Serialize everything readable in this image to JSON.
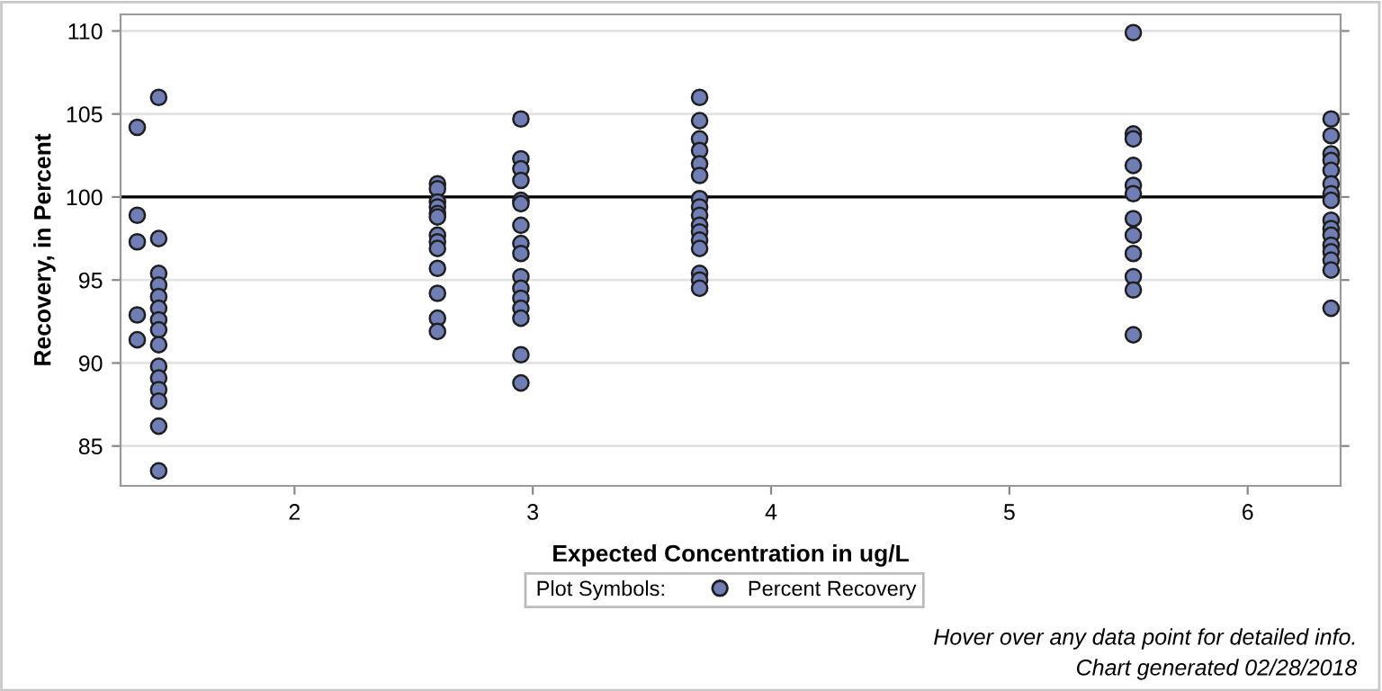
{
  "chart_data": {
    "type": "scatter",
    "xlabel": "Expected Concentration in ug/L",
    "ylabel": "Recovery, in Percent",
    "legend_title": "Plot Symbols:",
    "series": [
      {
        "name": "Percent Recovery",
        "color": "#6f7fb5",
        "x": [
          1.34,
          1.34,
          1.34,
          1.34,
          1.34,
          1.43,
          1.43,
          1.43,
          1.43,
          1.43,
          1.43,
          1.43,
          1.43,
          1.43,
          1.43,
          1.43,
          1.43,
          1.43,
          1.43,
          1.43,
          2.6,
          2.6,
          2.6,
          2.6,
          2.6,
          2.6,
          2.6,
          2.6,
          2.6,
          2.6,
          2.6,
          2.6,
          2.6,
          2.95,
          2.95,
          2.95,
          2.95,
          2.95,
          2.95,
          2.95,
          2.95,
          2.95,
          2.95,
          2.95,
          2.95,
          2.95,
          2.95,
          2.95,
          2.95,
          3.7,
          3.7,
          3.7,
          3.7,
          3.7,
          3.7,
          3.7,
          3.7,
          3.7,
          3.7,
          3.7,
          3.7,
          3.7,
          3.7,
          3.7,
          3.7,
          5.52,
          5.52,
          5.52,
          5.52,
          5.52,
          5.52,
          5.52,
          5.52,
          5.52,
          5.52,
          5.52,
          5.52,
          6.35,
          6.35,
          6.35,
          6.35,
          6.35,
          6.35,
          6.35,
          6.35,
          6.35,
          6.35,
          6.35,
          6.35,
          6.35,
          6.35,
          6.35,
          6.35
        ],
        "values": [
          104.2,
          98.9,
          97.3,
          92.9,
          91.4,
          106.0,
          97.5,
          95.4,
          94.7,
          94.0,
          93.3,
          92.6,
          92.0,
          91.1,
          89.8,
          89.1,
          88.4,
          87.7,
          86.2,
          83.5,
          100.8,
          100.5,
          99.7,
          99.4,
          99.0,
          98.8,
          97.7,
          97.3,
          96.9,
          95.7,
          94.2,
          92.7,
          91.9,
          104.7,
          102.3,
          101.7,
          101.0,
          99.8,
          99.6,
          98.3,
          97.2,
          96.6,
          95.2,
          94.5,
          93.9,
          93.3,
          92.7,
          90.5,
          88.8,
          106.0,
          104.6,
          103.5,
          102.8,
          102.0,
          101.3,
          99.9,
          99.4,
          98.9,
          98.3,
          97.9,
          97.4,
          96.9,
          95.4,
          95.0,
          94.5,
          109.9,
          103.8,
          103.5,
          101.9,
          100.7,
          100.2,
          98.7,
          97.7,
          96.6,
          95.2,
          94.4,
          91.7,
          104.7,
          103.7,
          102.6,
          102.2,
          101.6,
          100.8,
          100.2,
          99.8,
          98.6,
          98.1,
          97.7,
          97.1,
          96.7,
          96.2,
          95.6,
          93.3
        ]
      }
    ],
    "xlim": [
      1.27,
      6.39
    ],
    "xticks": [
      2,
      3,
      4,
      5,
      6
    ],
    "ylim": [
      82.6,
      111.0
    ],
    "yticks": [
      85,
      90,
      95,
      100,
      105,
      110
    ],
    "grid": "y",
    "marker": "circle",
    "legend": "bottom",
    "ref_lines": [
      {
        "axis": "y",
        "value": 100,
        "color": "#000000"
      }
    ],
    "annotations": [
      "Hover over any data point for detailed info.",
      "Chart generated 02/28/2018"
    ]
  }
}
